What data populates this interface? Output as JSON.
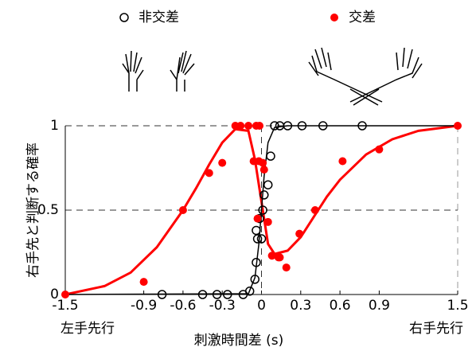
{
  "chart_data": {
    "type": "scatter",
    "xlabel": "刺激時間差 (s)",
    "ylabel": "右手先と判断する確率",
    "left_note": "左手先行",
    "right_note": "右手先行",
    "xlim": [
      -1.5,
      1.5
    ],
    "ylim": [
      0,
      1
    ],
    "xticks": [
      -1.5,
      -0.9,
      -0.6,
      -0.3,
      0,
      0.3,
      0.6,
      0.9,
      1.5
    ],
    "yticks": [
      0,
      0.5,
      1
    ],
    "grid": true,
    "series": [
      {
        "name": "非交差",
        "type": "scatter",
        "marker": "open",
        "color": "#000000",
        "x": [
          -0.76,
          -0.45,
          -0.34,
          -0.26,
          -0.14,
          -0.09,
          -0.05,
          -0.04,
          -0.03,
          -0.04,
          -0.015,
          0.01,
          0,
          0.02,
          0.05,
          0.07,
          0.1,
          0.14,
          0.2,
          0.31,
          0.47,
          0.77
        ],
        "values": [
          0,
          0,
          0,
          0,
          0,
          0.02,
          0.09,
          0.19,
          0.33,
          0.38,
          0.45,
          0.5,
          0.33,
          0.59,
          0.65,
          0.82,
          1,
          1,
          1,
          1,
          1,
          1
        ]
      },
      {
        "name": "交差",
        "type": "scatter",
        "marker": "filled",
        "color": "#ff0000",
        "x": [
          -1.5,
          -0.9,
          -0.6,
          -0.4,
          -0.3,
          -0.2,
          -0.16,
          -0.1,
          -0.04,
          -0.06,
          -0.015,
          -0.02,
          0.01,
          0.02,
          -0.03,
          0.05,
          0.08,
          0.13,
          0.14,
          0.19,
          0.29,
          0.41,
          0.62,
          0.9,
          1.5
        ],
        "values": [
          0,
          0.075,
          0.5,
          0.72,
          0.78,
          1,
          1,
          1,
          1,
          0.79,
          1,
          0.79,
          0.78,
          0.74,
          0.45,
          0.43,
          0.23,
          0.22,
          0.22,
          0.16,
          0.36,
          0.5,
          0.79,
          0.86,
          1
        ]
      },
      {
        "type": "line",
        "color": "#ff0000",
        "x": [
          -1.5,
          -1.2,
          -1.0,
          -0.8,
          -0.6,
          -0.5,
          -0.4,
          -0.3,
          -0.2,
          -0.1,
          -0.05,
          0,
          0.05,
          0.1,
          0.2,
          0.3,
          0.4,
          0.5,
          0.6,
          0.8,
          1.0,
          1.2,
          1.5
        ],
        "values": [
          0,
          0.05,
          0.13,
          0.28,
          0.5,
          0.63,
          0.77,
          0.9,
          0.98,
          0.97,
          0.8,
          0.55,
          0.3,
          0.24,
          0.26,
          0.34,
          0.46,
          0.58,
          0.68,
          0.83,
          0.92,
          0.97,
          1
        ]
      },
      {
        "type": "line",
        "color": "#000000",
        "x": [
          -1.5,
          -0.1,
          -0.05,
          -0.02,
          0,
          0.02,
          0.05,
          0.1,
          0.2,
          1.5
        ],
        "values": [
          0,
          0.005,
          0.1,
          0.3,
          0.5,
          0.7,
          0.9,
          0.99,
          1,
          1
        ]
      }
    ]
  }
}
